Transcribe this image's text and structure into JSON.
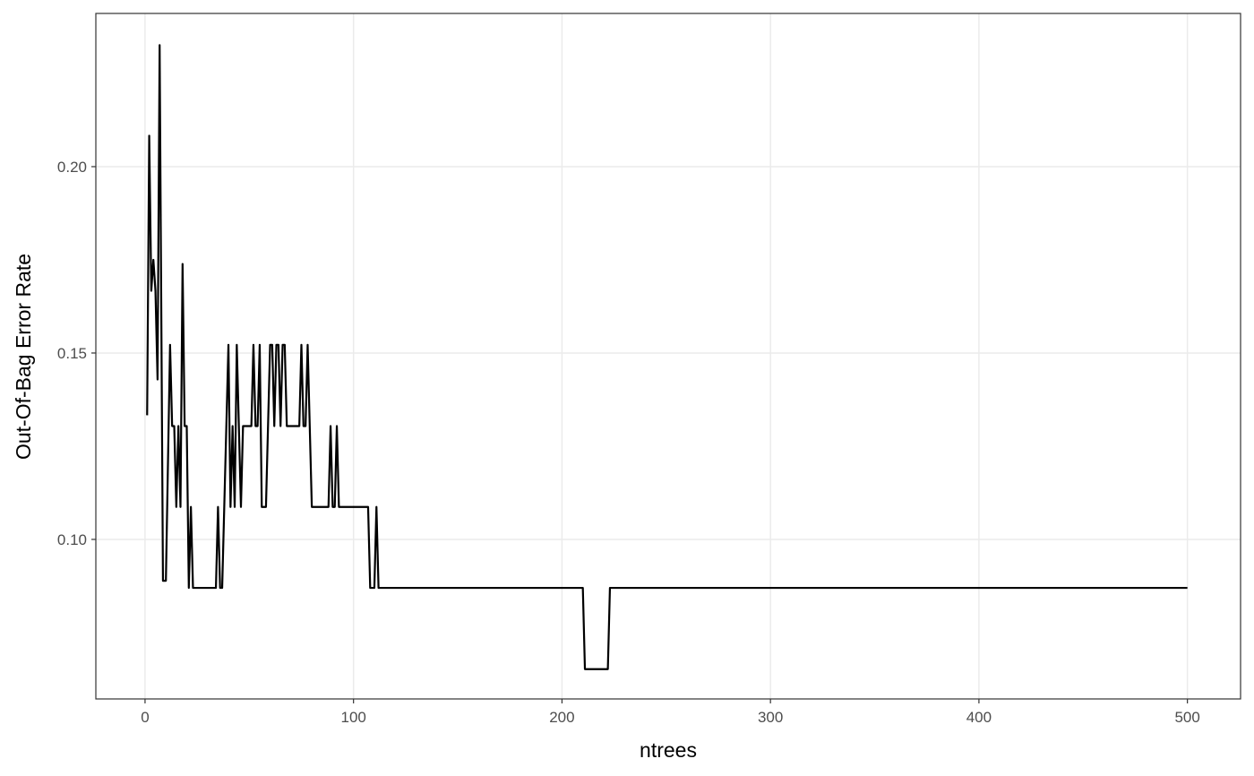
{
  "chart_data": {
    "type": "line",
    "x_label": "ntrees",
    "y_label": "Out-Of-Bag Error Rate",
    "x": [
      1,
      2,
      3,
      4,
      5,
      6,
      7,
      8.6,
      10,
      12,
      13,
      14,
      15,
      16,
      17,
      18,
      19,
      20,
      21,
      22,
      23,
      34,
      35,
      36,
      37,
      40,
      41,
      42,
      43,
      44,
      46,
      47,
      51,
      52,
      53,
      54,
      55,
      56,
      58,
      60,
      61,
      62,
      63,
      64,
      65,
      66,
      67,
      68,
      74,
      75,
      76,
      77,
      78,
      80,
      88,
      89,
      90,
      91,
      92,
      93,
      107,
      108,
      110,
      111,
      112,
      210,
      211,
      222,
      223,
      500
    ],
    "series": [
      {
        "color": "#000000",
        "values": [
          0.1333,
          0.2083,
          0.1667,
          0.175,
          0.1667,
          0.1429,
          0.2326,
          0.0889,
          0.0889,
          0.1522,
          0.1304,
          0.1304,
          0.1087,
          0.1304,
          0.1087,
          0.1739,
          0.1304,
          0.1304,
          0.087,
          0.1087,
          0.087,
          0.087,
          0.1087,
          0.087,
          0.087,
          0.1522,
          0.1087,
          0.1304,
          0.1087,
          0.1522,
          0.1087,
          0.1304,
          0.1304,
          0.1522,
          0.1304,
          0.1304,
          0.1522,
          0.1087,
          0.1087,
          0.1522,
          0.1522,
          0.1304,
          0.1522,
          0.1522,
          0.1304,
          0.1522,
          0.1522,
          0.1304,
          0.1304,
          0.1522,
          0.1304,
          0.1304,
          0.1522,
          0.1087,
          0.1087,
          0.1304,
          0.1087,
          0.1087,
          0.1304,
          0.1087,
          0.1087,
          0.087,
          0.087,
          0.1087,
          0.087,
          0.087,
          0.0652,
          0.0652,
          0.087,
          0.087
        ]
      }
    ],
    "xlim": [
      -23.6,
      525.5
    ],
    "xticks": [
      0,
      100,
      200,
      300,
      400,
      500
    ],
    "ylim": [
      0.0572,
      0.2411
    ],
    "yticks": [
      {
        "value": 0.1,
        "label": "0.10"
      },
      0.15,
      {
        "value": 0.2,
        "label": "0.20"
      }
    ],
    "grid": true
  }
}
